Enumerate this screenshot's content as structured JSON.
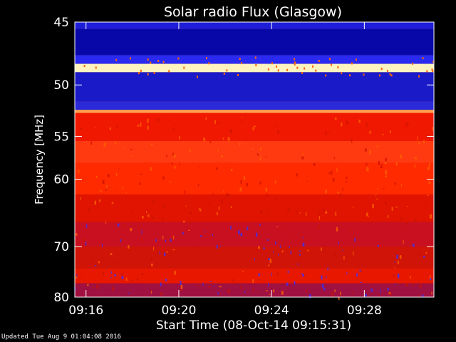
{
  "chart_data": {
    "type": "heatmap",
    "title": "Solar radio Flux (Glasgow)",
    "ylabel": "Frequency [MHz]",
    "xlabel": "Start Time (08-Oct-14 09:15:31)",
    "y_ticks": [
      45,
      50,
      55,
      60,
      70,
      80
    ],
    "y_range": [
      45,
      80
    ],
    "y_scale": "reciprocal",
    "x_ticks": [
      "09:16",
      "09:20",
      "09:24",
      "09:28"
    ],
    "x_range": [
      "09:15:31",
      "09:31:00"
    ],
    "colormap": [
      "#0a0a8c",
      "#3333ff",
      "#cc1100",
      "#ff2200",
      "#ff6600",
      "#ffd070",
      "#ffffff"
    ],
    "bands": [
      {
        "from_mhz": 45.0,
        "to_mhz": 45.5,
        "level": "#1e1ed8"
      },
      {
        "from_mhz": 45.5,
        "to_mhz": 47.5,
        "level": "#0808a8"
      },
      {
        "from_mhz": 47.5,
        "to_mhz": 48.2,
        "level": "#2a2af0"
      },
      {
        "from_mhz": 48.2,
        "to_mhz": 48.9,
        "level": "#fff3c0"
      },
      {
        "from_mhz": 48.9,
        "to_mhz": 51.5,
        "level": "#1a1ac8"
      },
      {
        "from_mhz": 51.5,
        "to_mhz": 52.3,
        "level": "#2a2ad8"
      },
      {
        "from_mhz": 52.3,
        "to_mhz": 52.6,
        "level": "#ffa050"
      },
      {
        "from_mhz": 52.6,
        "to_mhz": 55.5,
        "level": "#f01800"
      },
      {
        "from_mhz": 55.5,
        "to_mhz": 58.0,
        "level": "#ff3a10"
      },
      {
        "from_mhz": 58.0,
        "to_mhz": 62.0,
        "level": "#ff2a00"
      },
      {
        "from_mhz": 62.0,
        "to_mhz": 66.0,
        "level": "#e01400"
      },
      {
        "from_mhz": 66.0,
        "to_mhz": 70.0,
        "level": "#c81020"
      },
      {
        "from_mhz": 70.0,
        "to_mhz": 74.0,
        "level": "#d01408"
      },
      {
        "from_mhz": 74.0,
        "to_mhz": 77.0,
        "level": "#e81800"
      },
      {
        "from_mhz": 77.0,
        "to_mhz": 80.0,
        "level": "#a01040"
      }
    ]
  },
  "footer": "Updated Tue Aug  9 01:04:08 2016"
}
